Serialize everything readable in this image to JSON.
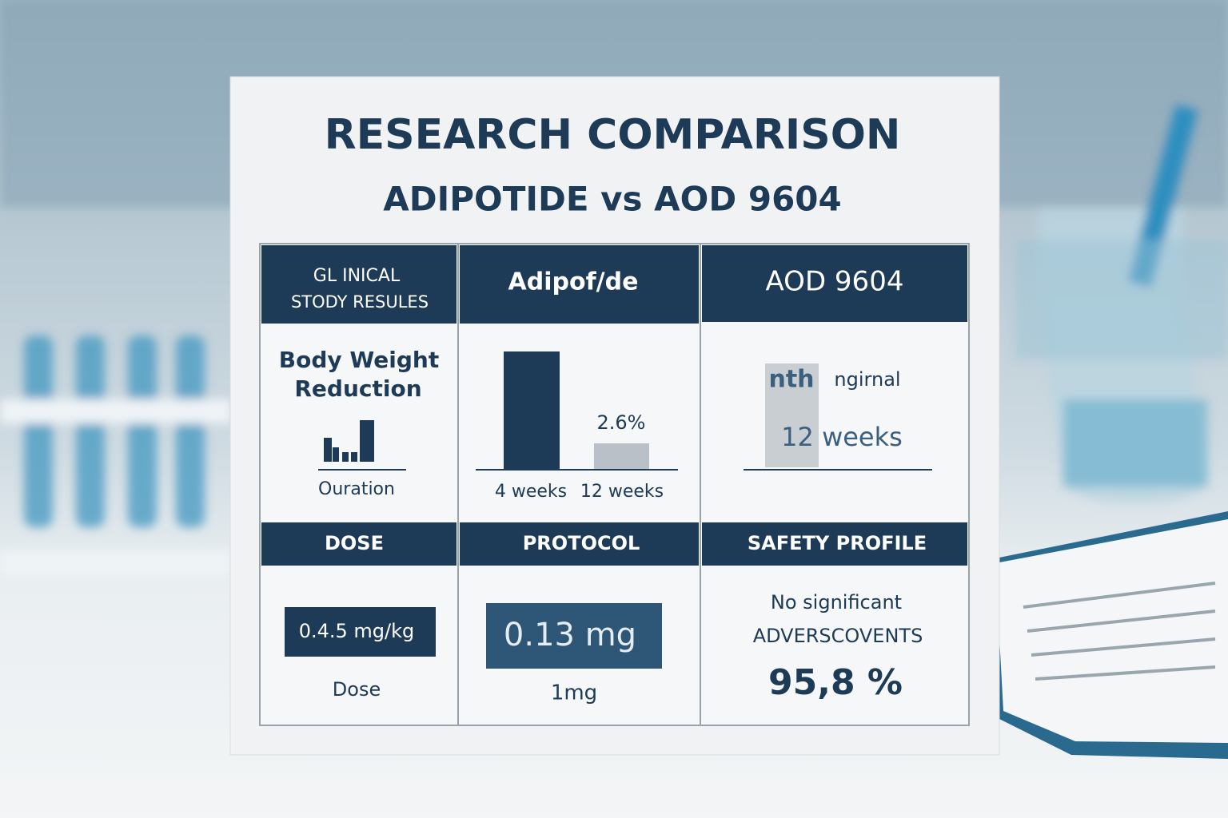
{
  "header": {
    "title": "RESEARCH COMPARISON",
    "subtitle": "ADIPOTIDE vs AOD 9604"
  },
  "table": {
    "column_headers": [
      [
        "GL INICAL",
        "STODY RESULES"
      ],
      "Adipof/de",
      "AOD 9604"
    ],
    "row1": {
      "label": [
        "Body Weight",
        "Reduction"
      ],
      "footer": "Ouration",
      "adipotide": {
        "bar_label": "2.6%",
        "categories": [
          "4 weeks",
          "12 weeks"
        ]
      },
      "aod": {
        "marker": "nth",
        "text": "ngirnal",
        "duration": "12 weeks"
      }
    },
    "section_headers": [
      "DOSE",
      "PROTOCOL",
      "SAFETY PROFILE"
    ],
    "row2": {
      "dose": {
        "box": "0.4.5 mg/kg",
        "label": "Dose"
      },
      "protocol": {
        "box": "0.13 mg",
        "label": "1mg"
      },
      "safety": {
        "lines": [
          "No significant",
          "ADVERSCOVENTS"
        ],
        "value": "95,8 %"
      }
    }
  }
}
